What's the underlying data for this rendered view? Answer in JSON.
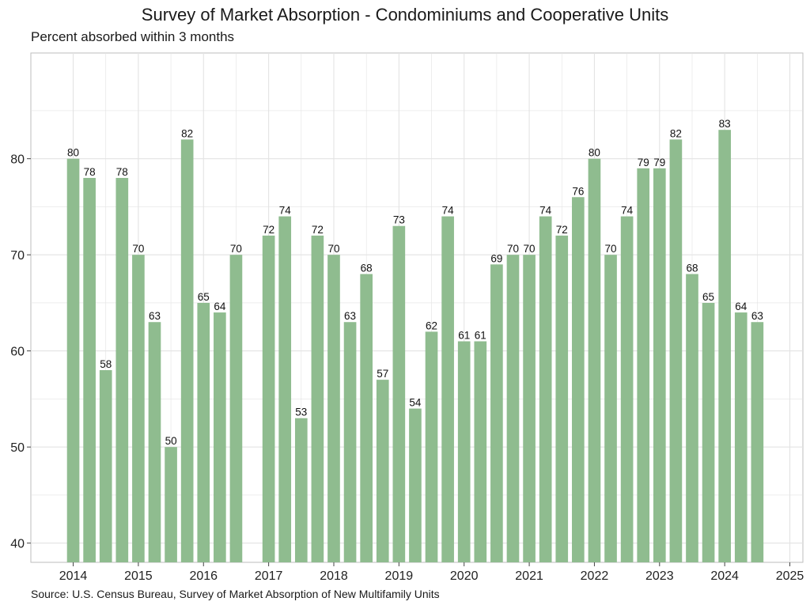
{
  "title": "Survey of Market Absorption - Condominiums and Cooperative Units",
  "subtitle": "Percent absorbed within 3 months",
  "caption": "Source: U.S. Census Bureau, Survey of Market Absorption of New Multifamily Units",
  "colors": {
    "bar": "#8fbc8f",
    "grid": "#e3e3e3",
    "panel_border": "#bdbdbd"
  },
  "chart_data": {
    "type": "bar",
    "title": "Survey of Market Absorption - Condominiums and Cooperative Units",
    "subtitle": "Percent absorbed within 3 months",
    "xlabel": "",
    "ylabel": "",
    "xlim": [
      2013.35,
      2025.2
    ],
    "ylim": [
      38,
      91
    ],
    "x_ticks": [
      2014,
      2015,
      2016,
      2017,
      2018,
      2019,
      2020,
      2021,
      2022,
      2023,
      2024,
      2025
    ],
    "y_ticks": [
      40,
      50,
      60,
      70,
      80
    ],
    "grid": true,
    "series": [
      {
        "values": [
          {
            "x": 2014.0,
            "y": 80
          },
          {
            "x": 2014.25,
            "y": 78
          },
          {
            "x": 2014.5,
            "y": 58
          },
          {
            "x": 2014.75,
            "y": 78
          },
          {
            "x": 2015.0,
            "y": 70
          },
          {
            "x": 2015.25,
            "y": 63
          },
          {
            "x": 2015.5,
            "y": 50
          },
          {
            "x": 2015.75,
            "y": 82
          },
          {
            "x": 2016.0,
            "y": 65
          },
          {
            "x": 2016.25,
            "y": 64
          },
          {
            "x": 2016.5,
            "y": 70
          },
          {
            "x": 2017.0,
            "y": 72
          },
          {
            "x": 2017.25,
            "y": 74
          },
          {
            "x": 2017.5,
            "y": 53
          },
          {
            "x": 2017.75,
            "y": 72
          },
          {
            "x": 2018.0,
            "y": 70
          },
          {
            "x": 2018.25,
            "y": 63
          },
          {
            "x": 2018.5,
            "y": 68
          },
          {
            "x": 2018.75,
            "y": 57
          },
          {
            "x": 2019.0,
            "y": 73
          },
          {
            "x": 2019.25,
            "y": 54
          },
          {
            "x": 2019.5,
            "y": 62
          },
          {
            "x": 2019.75,
            "y": 74
          },
          {
            "x": 2020.0,
            "y": 61
          },
          {
            "x": 2020.25,
            "y": 61
          },
          {
            "x": 2020.5,
            "y": 69
          },
          {
            "x": 2020.75,
            "y": 70
          },
          {
            "x": 2021.0,
            "y": 70
          },
          {
            "x": 2021.25,
            "y": 74
          },
          {
            "x": 2021.5,
            "y": 72
          },
          {
            "x": 2021.75,
            "y": 76
          },
          {
            "x": 2022.0,
            "y": 80
          },
          {
            "x": 2022.25,
            "y": 70
          },
          {
            "x": 2022.5,
            "y": 74
          },
          {
            "x": 2022.75,
            "y": 79
          },
          {
            "x": 2023.0,
            "y": 79
          },
          {
            "x": 2023.25,
            "y": 82
          },
          {
            "x": 2023.5,
            "y": 68
          },
          {
            "x": 2023.75,
            "y": 65
          },
          {
            "x": 2024.0,
            "y": 83
          },
          {
            "x": 2024.25,
            "y": 64
          },
          {
            "x": 2024.5,
            "y": 63
          }
        ]
      }
    ],
    "bar_width_years": 0.19
  }
}
